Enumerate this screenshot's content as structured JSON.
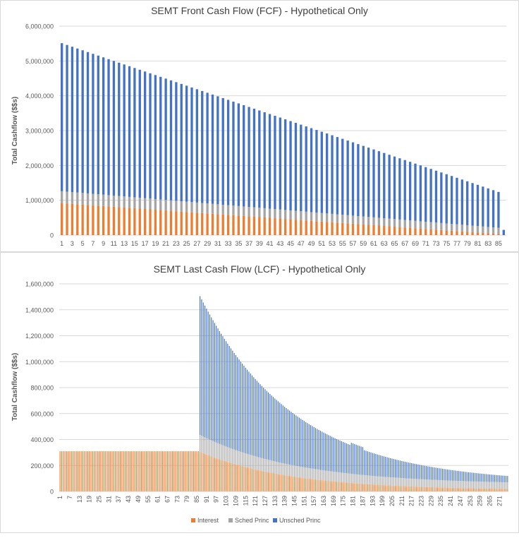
{
  "colors": {
    "interest": "#ED7D31",
    "sched": "#A5A5A5",
    "unsched": "#4472C4",
    "grid": "#d9d9d9",
    "text": "#595959",
    "title": "#404040"
  },
  "legend": [
    "Interest",
    "Sched Princ",
    "Unsched Princ"
  ],
  "chart_data": [
    {
      "type": "bar",
      "stacked": true,
      "title": "SEMT Front Cash Flow (FCF) - Hypothetical Only",
      "ylabel": "Total Cashflow ($$s)",
      "xlabel": "",
      "ylim": [
        0,
        6000000
      ],
      "yticks": [
        "0",
        "1,000,000",
        "2,000,000",
        "3,000,000",
        "4,000,000",
        "5,000,000",
        "6,000,000"
      ],
      "xticks": [
        "1",
        "3",
        "5",
        "7",
        "9",
        "11",
        "13",
        "15",
        "17",
        "19",
        "21",
        "23",
        "25",
        "27",
        "29",
        "31",
        "33",
        "35",
        "37",
        "39",
        "41",
        "43",
        "45",
        "47",
        "49",
        "51",
        "53",
        "55",
        "57",
        "59",
        "61",
        "63",
        "65",
        "67",
        "69",
        "71",
        "73",
        "75",
        "77",
        "79",
        "81",
        "83",
        "85"
      ],
      "periods": 86,
      "legend_position": "bottom",
      "series": [
        {
          "name": "Interest",
          "start": 920000,
          "end": 30000,
          "last": 0
        },
        {
          "name": "Sched Princ",
          "start": 340000,
          "end": 180000,
          "last": 0
        },
        {
          "name": "Unsched Princ",
          "start": 4250000,
          "end": 1030000,
          "last": 150000
        }
      ],
      "totals_approx": {
        "period_1": 5510000,
        "period_85": 1240000,
        "period_86": 150000
      }
    },
    {
      "type": "bar",
      "stacked": true,
      "title": "SEMT Last Cash Flow (LCF) - Hypothetical Only",
      "ylabel": "Total Cashflow ($$s)",
      "xlabel": "",
      "ylim": [
        0,
        1600000
      ],
      "yticks": [
        "0",
        "200,000",
        "400,000",
        "600,000",
        "800,000",
        "1,000,000",
        "1,200,000",
        "1,400,000",
        "1,600,000"
      ],
      "xticks": [
        "1",
        "7",
        "13",
        "19",
        "25",
        "31",
        "37",
        "43",
        "49",
        "55",
        "61",
        "67",
        "73",
        "79",
        "85",
        "91",
        "97",
        "103",
        "109",
        "115",
        "121",
        "127",
        "133",
        "139",
        "145",
        "151",
        "157",
        "163",
        "169",
        "175",
        "181",
        "187",
        "193",
        "199",
        "205",
        "211",
        "217",
        "223",
        "229",
        "235",
        "241",
        "247",
        "253",
        "259",
        "265",
        "271"
      ],
      "periods": 276,
      "legend_position": "bottom",
      "series": [
        {
          "name": "Interest",
          "flat_value": 310000,
          "flat_until": 86,
          "after_start": 305000,
          "after_end": 10000
        },
        {
          "name": "Sched Princ",
          "start": 130000,
          "end": 40000
        },
        {
          "name": "Unsched Princ",
          "start": 1070000,
          "end": 10000
        }
      ],
      "totals_approx": {
        "period_1_to_86": 310000,
        "period_87": 1500000,
        "period_276": 60000
      }
    }
  ]
}
